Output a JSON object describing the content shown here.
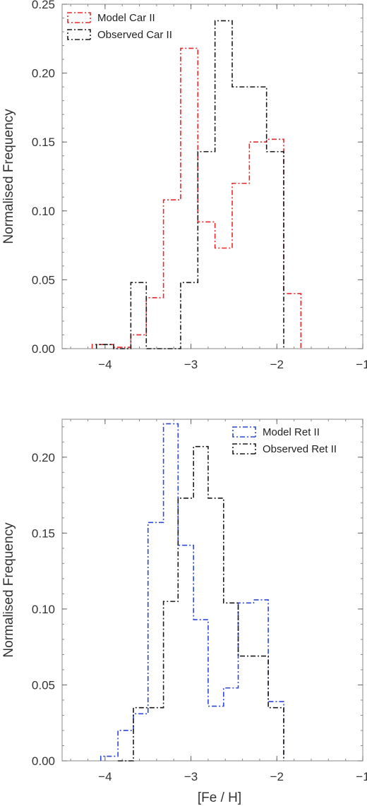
{
  "chart_data": [
    {
      "type": "histogram",
      "xlabel": "",
      "ylabel": "Normalised Frequency",
      "xlim": [
        -4.5,
        -1.0
      ],
      "ylim": [
        0,
        0.25
      ],
      "xticks": [
        -4,
        -3,
        -2,
        -1
      ],
      "xtick_labels": [
        "−4",
        "−3",
        "−2",
        "−1"
      ],
      "yticks": [
        0,
        0.05,
        0.1,
        0.15,
        0.2,
        0.25
      ],
      "ytick_labels": [
        "0.00",
        "0.05",
        "0.10",
        "0.15",
        "0.20",
        "0.25"
      ],
      "legend_position": "top-left",
      "series": [
        {
          "name": "Model Car II",
          "color": "#e8282b",
          "edges": [
            -4.15,
            -3.9,
            -3.7,
            -3.52,
            -3.32,
            -3.12,
            -2.92,
            -2.72,
            -2.52,
            -2.32,
            -2.12,
            -1.92,
            -1.72
          ],
          "values": [
            0.003,
            0.001,
            0.01,
            0.037,
            0.108,
            0.218,
            0.092,
            0.073,
            0.12,
            0.15,
            0.152,
            0.04
          ]
        },
        {
          "name": "Observed Car II",
          "color": "#1a1a1a",
          "edges": [
            -4.1,
            -3.9,
            -3.7,
            -3.52,
            -3.32,
            -3.12,
            -2.92,
            -2.72,
            -2.52,
            -2.32,
            -2.12,
            -1.92
          ],
          "values": [
            0.003,
            0.0,
            0.048,
            0.0,
            0.0,
            0.048,
            0.143,
            0.238,
            0.19,
            0.19,
            0.143
          ]
        }
      ]
    },
    {
      "type": "histogram",
      "xlabel": "[Fe / H]",
      "ylabel": "Normalised Frequency",
      "xlim": [
        -4.5,
        -1.0
      ],
      "ylim": [
        0,
        0.225
      ],
      "xticks": [
        -4,
        -3,
        -2,
        -1
      ],
      "xtick_labels": [
        "−4",
        "−3",
        "−2",
        "−1"
      ],
      "yticks": [
        0,
        0.05,
        0.1,
        0.15,
        0.2
      ],
      "ytick_labels": [
        "0.00",
        "0.05",
        "0.10",
        "0.15",
        "0.20"
      ],
      "legend_position": "top-right",
      "series": [
        {
          "name": "Model Ret II",
          "color": "#2c47d9",
          "edges": [
            -4.05,
            -3.85,
            -3.67,
            -3.5,
            -3.32,
            -3.15,
            -2.97,
            -2.8,
            -2.62,
            -2.45,
            -2.27,
            -2.1,
            -1.92
          ],
          "values": [
            0.003,
            0.02,
            0.031,
            0.157,
            0.222,
            0.142,
            0.093,
            0.036,
            0.048,
            0.104,
            0.106,
            0.039
          ]
        },
        {
          "name": "Observed Ret II",
          "color": "#1a1a1a",
          "edges": [
            -3.85,
            -3.67,
            -3.5,
            -3.32,
            -3.15,
            -2.97,
            -2.8,
            -2.62,
            -2.45,
            -2.27,
            -2.1,
            -1.92
          ],
          "values": [
            0.0,
            0.035,
            0.035,
            0.105,
            0.173,
            0.207,
            0.173,
            0.104,
            0.069,
            0.069,
            0.035
          ]
        }
      ]
    }
  ]
}
